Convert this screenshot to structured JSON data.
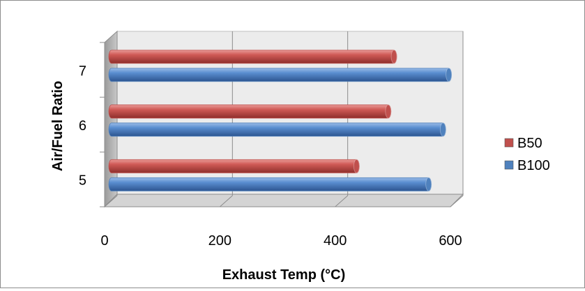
{
  "chart_data": {
    "type": "bar",
    "orientation": "horizontal",
    "style": "3d-cylinder",
    "categories": [
      "5",
      "6",
      "7"
    ],
    "series": [
      {
        "name": "B50",
        "values": [
          425,
          480,
          490
        ],
        "color": "#c0504d"
      },
      {
        "name": "B100",
        "values": [
          550,
          575,
          585
        ],
        "color": "#4f81bd"
      }
    ],
    "title": "",
    "xlabel": "Exhaust Temp (°C)",
    "ylabel": "Air/Fuel Ratio",
    "xlim": [
      0,
      600
    ],
    "xticks": [
      "0",
      "200",
      "400",
      "600"
    ],
    "grid": true,
    "legend": "right"
  }
}
